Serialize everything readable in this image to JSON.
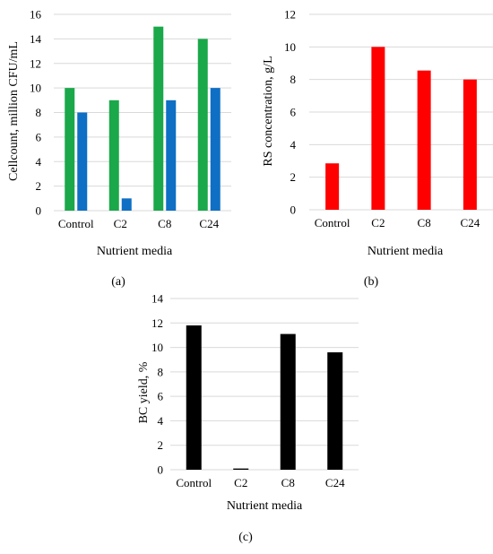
{
  "chart_data": [
    {
      "id": "a",
      "type": "bar",
      "panel_label": "(a)",
      "categories": [
        "Control",
        "C2",
        "C8",
        "C24"
      ],
      "series": [
        {
          "values": [
            10,
            9,
            15,
            14
          ],
          "color": "#1aa84a"
        },
        {
          "values": [
            8,
            1,
            9,
            10
          ],
          "color": "#0e6fc4"
        }
      ],
      "xlabel": "Nutrient media",
      "ylabel": "Cellcount, million CFU/mL",
      "ylim": [
        0,
        16
      ],
      "yticks": [
        0,
        2,
        4,
        6,
        8,
        10,
        12,
        14,
        16
      ],
      "grid": true,
      "legend": false
    },
    {
      "id": "b",
      "type": "bar",
      "panel_label": "(b)",
      "categories": [
        "Control",
        "C2",
        "C8",
        "C24"
      ],
      "series": [
        {
          "values": [
            2.85,
            10,
            8.55,
            8
          ],
          "color": "#ff0000"
        }
      ],
      "xlabel": "Nutrient media",
      "ylabel": "RS concentration, g/L",
      "ylim": [
        0,
        12
      ],
      "yticks": [
        0,
        2,
        4,
        6,
        8,
        10,
        12
      ],
      "grid": true,
      "legend": false
    },
    {
      "id": "c",
      "type": "bar",
      "panel_label": "(c)",
      "categories": [
        "Control",
        "C2",
        "C8",
        "C24"
      ],
      "series": [
        {
          "values": [
            11.8,
            0.1,
            11.1,
            9.6
          ],
          "color": "#000000"
        }
      ],
      "xlabel": "Nutrient media",
      "ylabel": "BC yield, %",
      "ylim": [
        0,
        14
      ],
      "yticks": [
        0,
        2,
        4,
        6,
        8,
        10,
        12,
        14
      ],
      "grid": true,
      "legend": false
    }
  ]
}
